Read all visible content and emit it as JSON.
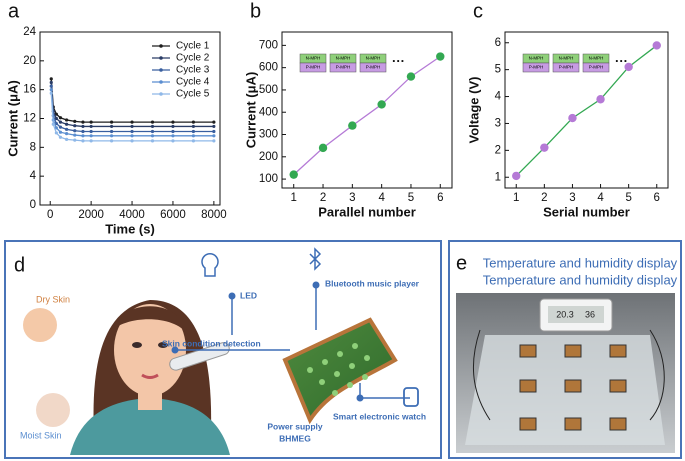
{
  "chart_data": [
    {
      "type": "line",
      "panel": "a",
      "xlabel": "Time (s)",
      "ylabel": "Current (μA)",
      "x": [
        50,
        150,
        300,
        500,
        800,
        1200,
        1600,
        2000,
        3000,
        4000,
        5000,
        6000,
        7000,
        8000
      ],
      "xlim": [
        -500,
        8300
      ],
      "xticks": [
        0,
        2000,
        4000,
        6000,
        8000
      ],
      "ylim": [
        0,
        24
      ],
      "yticks": [
        0,
        4,
        8,
        12,
        16,
        20,
        24
      ],
      "legend": "upper right",
      "series": [
        {
          "name": "Cycle 1",
          "color": "#1e1e1e",
          "values": [
            17.5,
            13.6,
            12.6,
            12.1,
            11.8,
            11.6,
            11.5,
            11.5,
            11.5,
            11.5,
            11.5,
            11.5,
            11.5,
            11.5
          ]
        },
        {
          "name": "Cycle 2",
          "color": "#2a3c66",
          "values": [
            17,
            13,
            12,
            11.5,
            11.2,
            11,
            10.9,
            10.9,
            10.9,
            10.9,
            10.9,
            10.9,
            10.9,
            10.9
          ]
        },
        {
          "name": "Cycle 3",
          "color": "#3a5f9f",
          "values": [
            16.5,
            12.4,
            11.3,
            10.8,
            10.5,
            10.3,
            10.2,
            10.2,
            10.2,
            10.2,
            10.2,
            10.2,
            10.2,
            10.2
          ]
        },
        {
          "name": "Cycle 4",
          "color": "#5b8ed0",
          "values": [
            16,
            11.8,
            10.7,
            10.1,
            9.9,
            9.7,
            9.6,
            9.6,
            9.6,
            9.6,
            9.6,
            9.6,
            9.6,
            9.6
          ]
        },
        {
          "name": "Cycle 5",
          "color": "#8fb8e8",
          "values": [
            15.5,
            11.2,
            10,
            9.4,
            9.1,
            9,
            8.9,
            8.9,
            8.9,
            8.9,
            8.9,
            8.9,
            8.9,
            8.9
          ]
        }
      ]
    },
    {
      "type": "fit",
      "panel": "b",
      "xlabel": "Parallel number",
      "ylabel": "Current (μA)",
      "x": [
        1,
        2,
        3,
        4,
        5,
        6
      ],
      "values": [
        120,
        240,
        340,
        435,
        560,
        650
      ],
      "color": "#b57ad6",
      "marker_color": "#33a852",
      "xlim": [
        0.6,
        6.4
      ],
      "xticks": [
        1,
        2,
        3,
        4,
        5,
        6
      ],
      "ylim": [
        60,
        760
      ],
      "yticks": [
        100,
        200,
        300,
        400,
        500,
        600,
        700
      ],
      "inset": {
        "top": "N-MPH",
        "bottom": "P-MPH",
        "more": "···"
      }
    },
    {
      "type": "fit",
      "panel": "c",
      "xlabel": "Serial number",
      "ylabel": "Voltage (V)",
      "x": [
        1,
        2,
        3,
        4,
        5,
        6
      ],
      "values": [
        1.05,
        2.1,
        3.2,
        3.9,
        5.1,
        5.9
      ],
      "color": "#33a852",
      "marker_color": "#b57ad6",
      "xlim": [
        0.6,
        6.4
      ],
      "xticks": [
        1,
        2,
        3,
        4,
        5,
        6
      ],
      "ylim": [
        0.6,
        6.4
      ],
      "yticks": [
        1,
        2,
        3,
        4,
        5,
        6
      ],
      "inset": {
        "top": "N-MPH",
        "bottom": "P-MPH",
        "more": "···"
      }
    }
  ],
  "panel_d": {
    "label": "d",
    "led": "LED",
    "bluetooth": "Bluetooth music player",
    "skin": "Skin condition detection",
    "dry": "Dry Skin",
    "moist": "Moist Skin",
    "power": "Power supply",
    "device": "BHMEG",
    "watch": "Smart electronic watch"
  },
  "panel_e": {
    "label": "e",
    "title": "Temperature and humidity display",
    "temp": "20.3",
    "hum": "36"
  }
}
